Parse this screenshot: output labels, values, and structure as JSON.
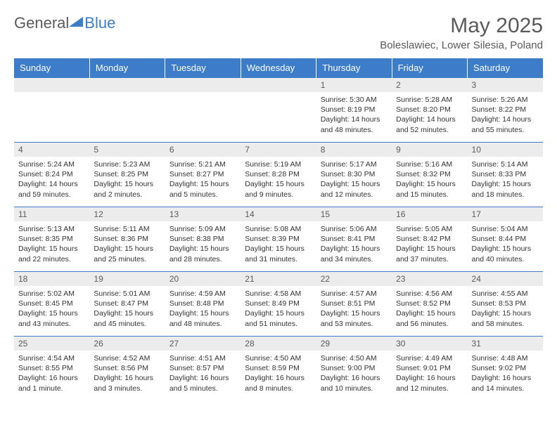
{
  "brand": {
    "part1": "General",
    "part2": "Blue"
  },
  "title": "May 2025",
  "location": "Boleslawiec, Lower Silesia, Poland",
  "colors": {
    "header_bg": "#3d7cc9",
    "header_fg": "#ffffff",
    "daynum_bg": "#ececec",
    "text": "#5a5a5a",
    "cell_border": "#3d7cc9",
    "body_bg": "#ffffff"
  },
  "fonts": {
    "base": "Arial",
    "title_size": 30,
    "location_size": 15,
    "th_size": 13,
    "daynum_size": 12,
    "cell_size": 10.5
  },
  "weekdays": [
    "Sunday",
    "Monday",
    "Tuesday",
    "Wednesday",
    "Thursday",
    "Friday",
    "Saturday"
  ],
  "weeks": [
    [
      null,
      null,
      null,
      null,
      {
        "n": "1",
        "sunrise": "5:30 AM",
        "sunset": "8:19 PM",
        "daylight": "14 hours and 48 minutes."
      },
      {
        "n": "2",
        "sunrise": "5:28 AM",
        "sunset": "8:20 PM",
        "daylight": "14 hours and 52 minutes."
      },
      {
        "n": "3",
        "sunrise": "5:26 AM",
        "sunset": "8:22 PM",
        "daylight": "14 hours and 55 minutes."
      }
    ],
    [
      {
        "n": "4",
        "sunrise": "5:24 AM",
        "sunset": "8:24 PM",
        "daylight": "14 hours and 59 minutes."
      },
      {
        "n": "5",
        "sunrise": "5:23 AM",
        "sunset": "8:25 PM",
        "daylight": "15 hours and 2 minutes."
      },
      {
        "n": "6",
        "sunrise": "5:21 AM",
        "sunset": "8:27 PM",
        "daylight": "15 hours and 5 minutes."
      },
      {
        "n": "7",
        "sunrise": "5:19 AM",
        "sunset": "8:28 PM",
        "daylight": "15 hours and 9 minutes."
      },
      {
        "n": "8",
        "sunrise": "5:17 AM",
        "sunset": "8:30 PM",
        "daylight": "15 hours and 12 minutes."
      },
      {
        "n": "9",
        "sunrise": "5:16 AM",
        "sunset": "8:32 PM",
        "daylight": "15 hours and 15 minutes."
      },
      {
        "n": "10",
        "sunrise": "5:14 AM",
        "sunset": "8:33 PM",
        "daylight": "15 hours and 18 minutes."
      }
    ],
    [
      {
        "n": "11",
        "sunrise": "5:13 AM",
        "sunset": "8:35 PM",
        "daylight": "15 hours and 22 minutes."
      },
      {
        "n": "12",
        "sunrise": "5:11 AM",
        "sunset": "8:36 PM",
        "daylight": "15 hours and 25 minutes."
      },
      {
        "n": "13",
        "sunrise": "5:09 AM",
        "sunset": "8:38 PM",
        "daylight": "15 hours and 28 minutes."
      },
      {
        "n": "14",
        "sunrise": "5:08 AM",
        "sunset": "8:39 PM",
        "daylight": "15 hours and 31 minutes."
      },
      {
        "n": "15",
        "sunrise": "5:06 AM",
        "sunset": "8:41 PM",
        "daylight": "15 hours and 34 minutes."
      },
      {
        "n": "16",
        "sunrise": "5:05 AM",
        "sunset": "8:42 PM",
        "daylight": "15 hours and 37 minutes."
      },
      {
        "n": "17",
        "sunrise": "5:04 AM",
        "sunset": "8:44 PM",
        "daylight": "15 hours and 40 minutes."
      }
    ],
    [
      {
        "n": "18",
        "sunrise": "5:02 AM",
        "sunset": "8:45 PM",
        "daylight": "15 hours and 43 minutes."
      },
      {
        "n": "19",
        "sunrise": "5:01 AM",
        "sunset": "8:47 PM",
        "daylight": "15 hours and 45 minutes."
      },
      {
        "n": "20",
        "sunrise": "4:59 AM",
        "sunset": "8:48 PM",
        "daylight": "15 hours and 48 minutes."
      },
      {
        "n": "21",
        "sunrise": "4:58 AM",
        "sunset": "8:49 PM",
        "daylight": "15 hours and 51 minutes."
      },
      {
        "n": "22",
        "sunrise": "4:57 AM",
        "sunset": "8:51 PM",
        "daylight": "15 hours and 53 minutes."
      },
      {
        "n": "23",
        "sunrise": "4:56 AM",
        "sunset": "8:52 PM",
        "daylight": "15 hours and 56 minutes."
      },
      {
        "n": "24",
        "sunrise": "4:55 AM",
        "sunset": "8:53 PM",
        "daylight": "15 hours and 58 minutes."
      }
    ],
    [
      {
        "n": "25",
        "sunrise": "4:54 AM",
        "sunset": "8:55 PM",
        "daylight": "16 hours and 1 minute."
      },
      {
        "n": "26",
        "sunrise": "4:52 AM",
        "sunset": "8:56 PM",
        "daylight": "16 hours and 3 minutes."
      },
      {
        "n": "27",
        "sunrise": "4:51 AM",
        "sunset": "8:57 PM",
        "daylight": "16 hours and 5 minutes."
      },
      {
        "n": "28",
        "sunrise": "4:50 AM",
        "sunset": "8:59 PM",
        "daylight": "16 hours and 8 minutes."
      },
      {
        "n": "29",
        "sunrise": "4:50 AM",
        "sunset": "9:00 PM",
        "daylight": "16 hours and 10 minutes."
      },
      {
        "n": "30",
        "sunrise": "4:49 AM",
        "sunset": "9:01 PM",
        "daylight": "16 hours and 12 minutes."
      },
      {
        "n": "31",
        "sunrise": "4:48 AM",
        "sunset": "9:02 PM",
        "daylight": "16 hours and 14 minutes."
      }
    ]
  ],
  "labels": {
    "sunrise": "Sunrise: ",
    "sunset": "Sunset: ",
    "daylight": "Daylight: "
  }
}
